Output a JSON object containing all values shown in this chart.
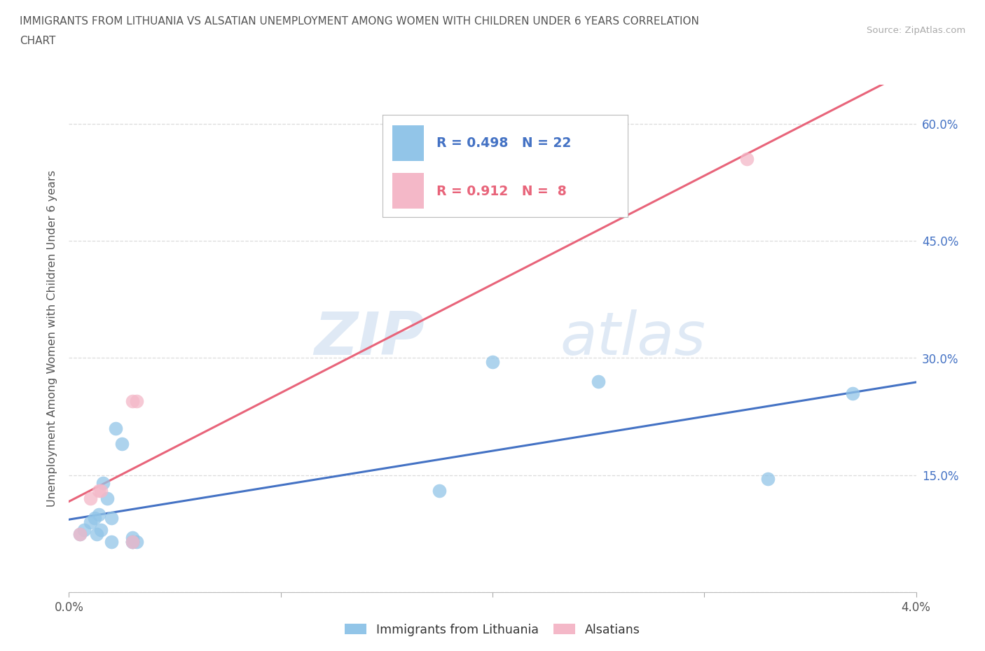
{
  "title_line1": "IMMIGRANTS FROM LITHUANIA VS ALSATIAN UNEMPLOYMENT AMONG WOMEN WITH CHILDREN UNDER 6 YEARS CORRELATION",
  "title_line2": "CHART",
  "source": "Source: ZipAtlas.com",
  "ylabel": "Unemployment Among Women with Children Under 6 years",
  "xlim": [
    0.0,
    0.04
  ],
  "ylim": [
    0.0,
    0.65
  ],
  "xticks": [
    0.0,
    0.01,
    0.02,
    0.03,
    0.04
  ],
  "yticks": [
    0.0,
    0.15,
    0.3,
    0.45,
    0.6
  ],
  "ytick_labels": [
    "",
    "15.0%",
    "30.0%",
    "45.0%",
    "60.0%"
  ],
  "blue_scatter_x": [
    0.0005,
    0.0007,
    0.001,
    0.0012,
    0.0013,
    0.0014,
    0.0015,
    0.0016,
    0.0018,
    0.002,
    0.002,
    0.0022,
    0.0025,
    0.003,
    0.003,
    0.003,
    0.0032,
    0.0175,
    0.02,
    0.025,
    0.033,
    0.037
  ],
  "blue_scatter_y": [
    0.075,
    0.08,
    0.09,
    0.095,
    0.075,
    0.1,
    0.08,
    0.14,
    0.12,
    0.095,
    0.065,
    0.21,
    0.19,
    0.07,
    0.065,
    0.065,
    0.065,
    0.13,
    0.295,
    0.27,
    0.145,
    0.255
  ],
  "pink_scatter_x": [
    0.0005,
    0.001,
    0.0014,
    0.0015,
    0.003,
    0.003,
    0.0032,
    0.032
  ],
  "pink_scatter_y": [
    0.075,
    0.12,
    0.13,
    0.13,
    0.245,
    0.065,
    0.245,
    0.555
  ],
  "blue_color": "#92c5e8",
  "pink_color": "#f4b8c8",
  "blue_line_color": "#4472c4",
  "pink_line_color": "#e8647a",
  "R_blue": 0.498,
  "N_blue": 22,
  "R_pink": 0.912,
  "N_pink": 8,
  "watermark_zip": "ZIP",
  "watermark_atlas": "atlas",
  "scatter_size": 200,
  "grid_color": "#cccccc",
  "grid_style": "--",
  "grid_alpha": 0.7,
  "bg_color": "#ffffff",
  "legend_label_blue": "Immigrants from Lithuania",
  "legend_label_pink": "Alsatians",
  "tick_color": "#4472c4",
  "axis_label_color": "#555555"
}
